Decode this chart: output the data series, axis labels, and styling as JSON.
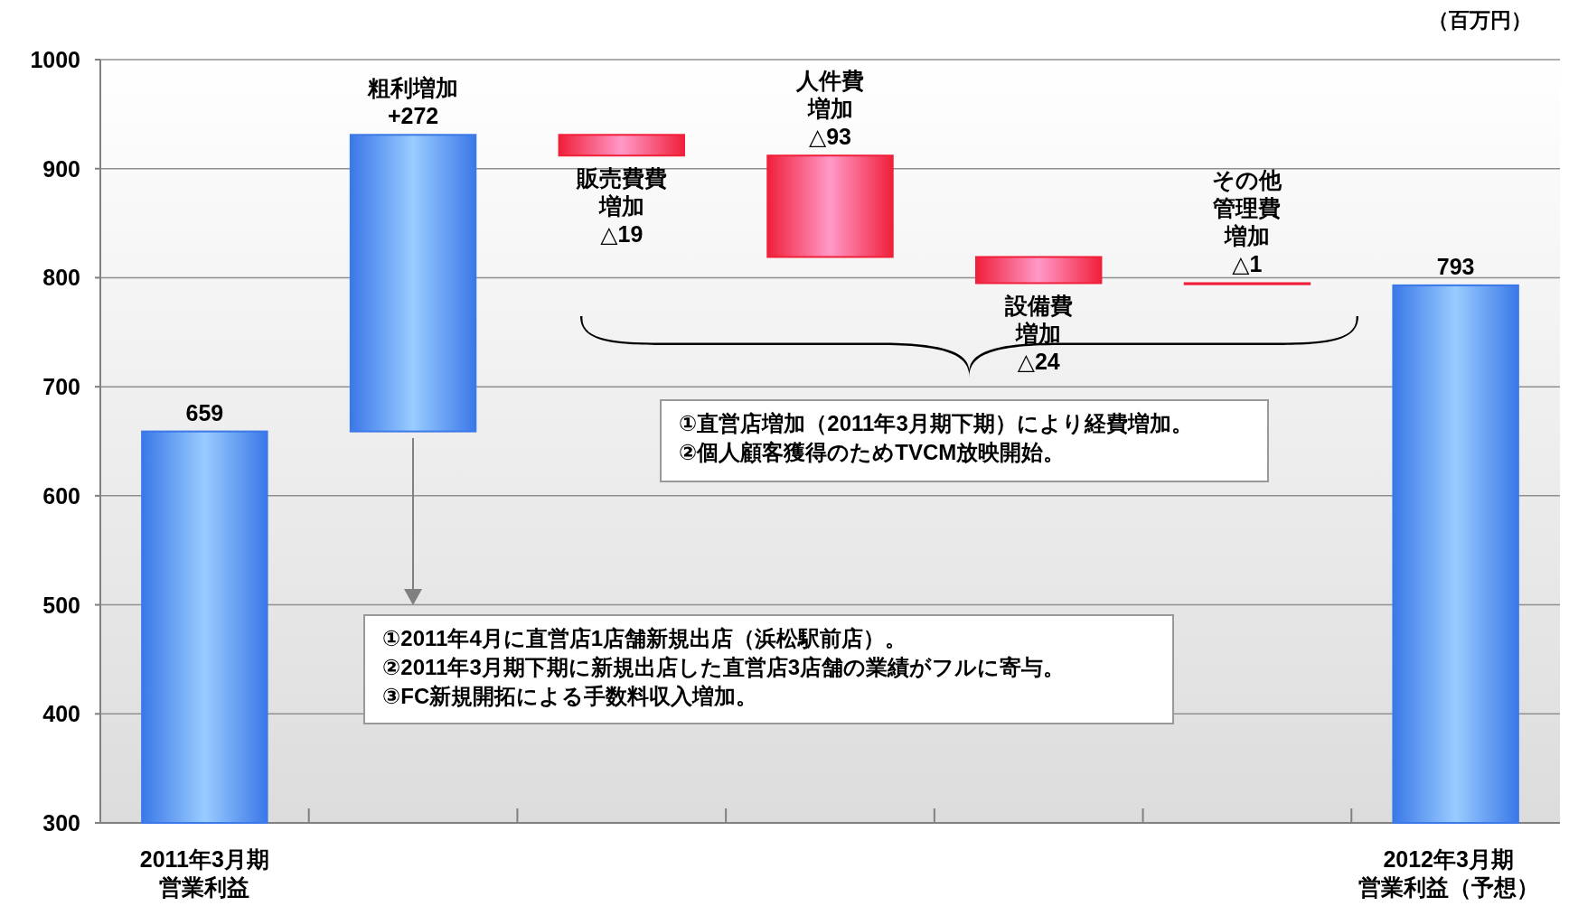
{
  "chart_data": {
    "type": "bar",
    "categories": [
      "2011年3月期営業利益",
      "粗利増加",
      "販売費費増加",
      "人件費増加",
      "設備費増加",
      "その他管理費増加",
      "2012年3月期営業利益（予想）"
    ],
    "values": [
      659,
      272,
      -19,
      -93,
      -24,
      -1,
      793
    ],
    "base": [
      null,
      659,
      931,
      912,
      819,
      795,
      null
    ],
    "colors": [
      "#3b78e8",
      "#3b78e8",
      "#f0203a",
      "#f0203a",
      "#f0203a",
      "#f0203a",
      "#3b78e8"
    ],
    "value_labels": [
      "659",
      "+272",
      "△19",
      "△93",
      "△24",
      "△1",
      "793"
    ],
    "ylim": [
      300,
      1000
    ],
    "yticks": [
      300,
      400,
      500,
      600,
      700,
      800,
      900,
      1000
    ],
    "grid": "y",
    "annotations": [
      "（百万円）",
      "①直営店増加（2011年3月期下期）により経費増加。\n②個人顧客獲得のためTVCM放映開始。",
      "①2011年4月に直営店1店舗新規出店（浜松駅前店）。\n②2011年3月期下期に新規出店した直営店3店舗の業績がフルに寄与。\n③FC新規開拓による手数料収入増加。"
    ]
  }
}
